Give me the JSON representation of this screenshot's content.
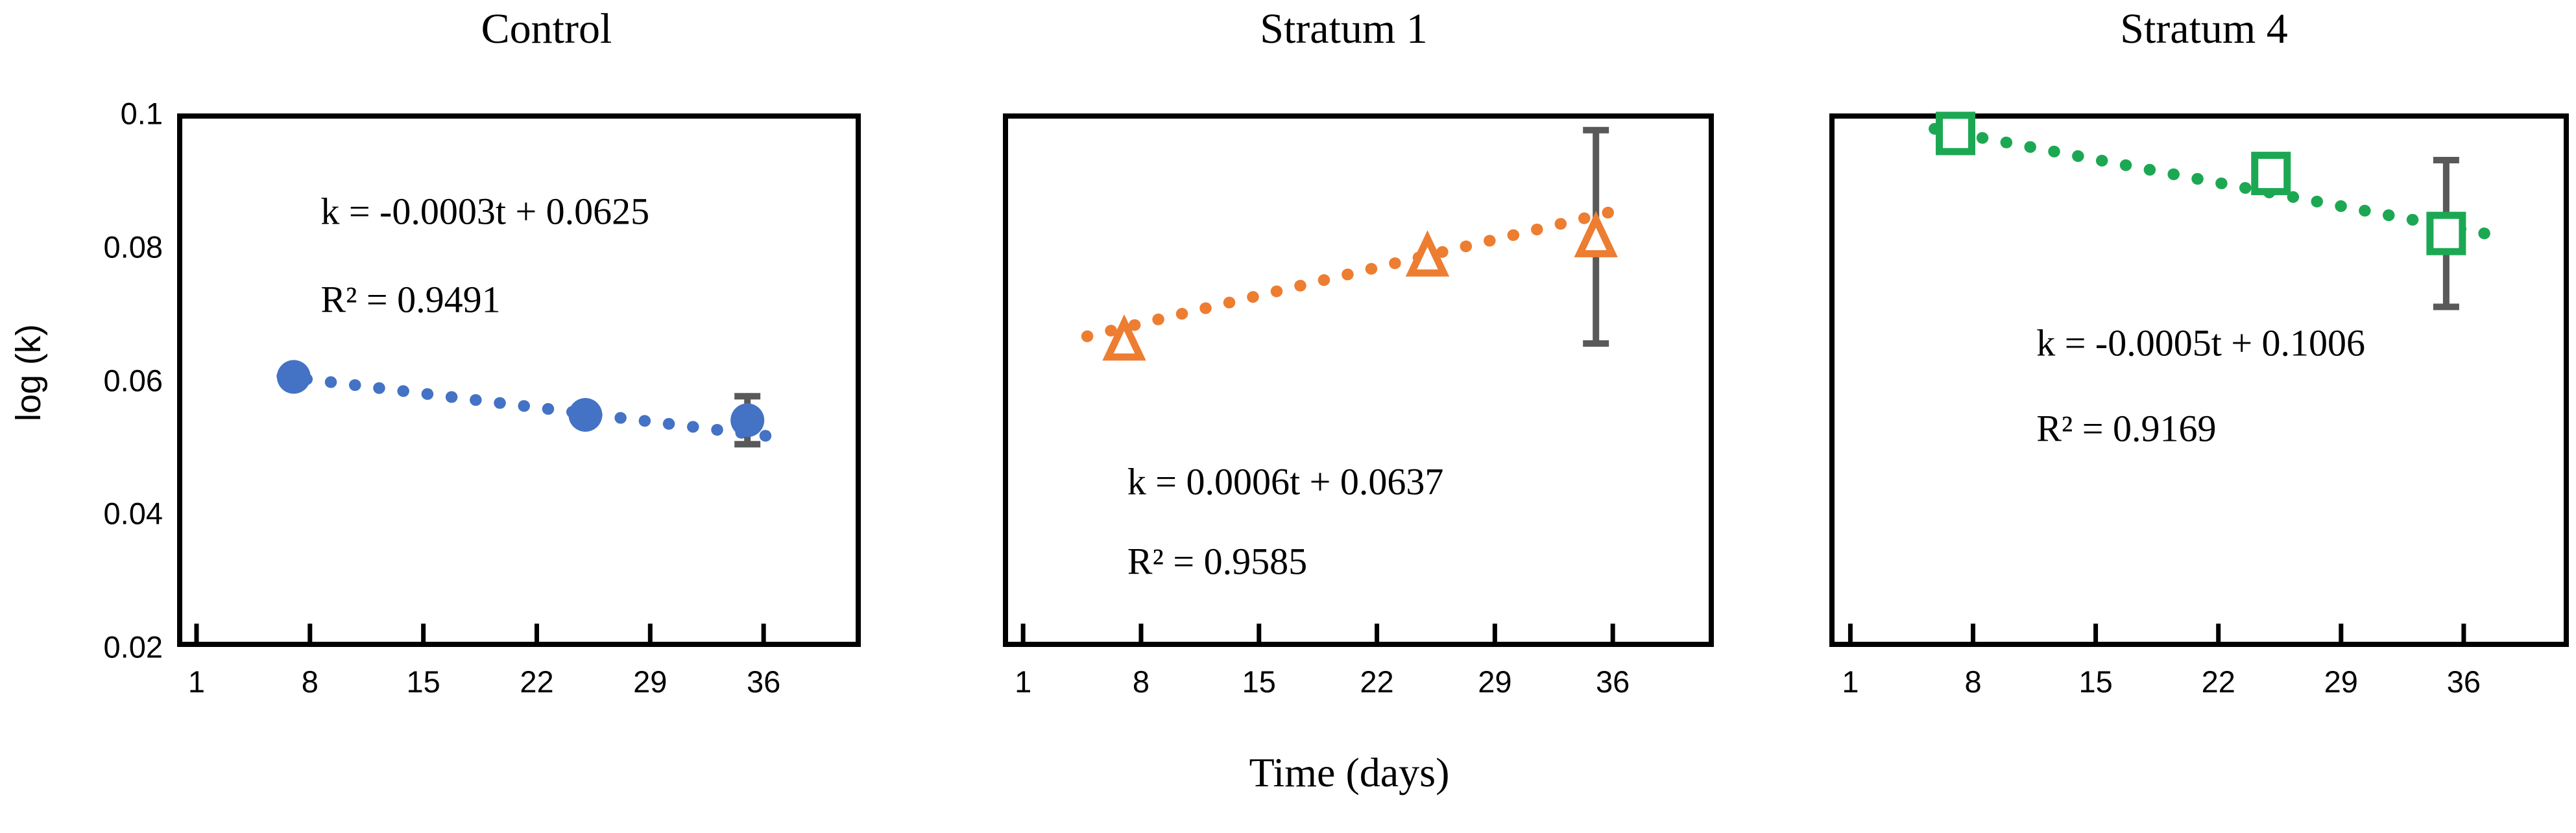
{
  "figure": {
    "y_axis_label": "log (k)",
    "x_axis_label": "Time (days)",
    "background_color": "#ffffff",
    "axis_color": "#000000",
    "error_bar_color": "#595959"
  },
  "chart_data": [
    {
      "type": "scatter",
      "title": "Control",
      "marker": "filled-circle",
      "color": "#4472C4",
      "xlim": [
        -0.2,
        42
      ],
      "ylim": [
        0.02,
        0.1
      ],
      "xticks": [
        1,
        8,
        15,
        22,
        29,
        36
      ],
      "yticks": [
        0.02,
        0.04,
        0.06,
        0.08,
        0.1
      ],
      "ytick_labels": [
        "0.02",
        "0.04",
        "0.06",
        "0.08",
        "0.1"
      ],
      "show_y_tick_labels": true,
      "xlabel": "Time (days)",
      "ylabel": "log (k)",
      "grid": false,
      "points": [
        {
          "t": 7,
          "k": 0.0605
        },
        {
          "t": 25,
          "k": 0.0548
        },
        {
          "t": 35,
          "k": 0.054,
          "error": 0.0036
        }
      ],
      "trendline": {
        "style": "dotted",
        "slope": -0.0003,
        "intercept": 0.0625,
        "t_start": 6.3,
        "t_end": 36.8,
        "equation": "k = -0.0003t + 0.0625",
        "r_squared": "R² = 0.9491"
      }
    },
    {
      "type": "scatter",
      "title": "Stratum 1",
      "marker": "open-triangle",
      "color": "#ED7D31",
      "xlim": [
        -0.2,
        42
      ],
      "ylim": [
        0.02,
        0.1
      ],
      "xticks": [
        1,
        8,
        15,
        22,
        29,
        36
      ],
      "yticks": [
        0.02,
        0.04,
        0.06,
        0.08,
        0.1
      ],
      "ytick_labels": [
        "0.02",
        "0.04",
        "0.06",
        "0.08",
        "0.1"
      ],
      "show_y_tick_labels": false,
      "xlabel": "Time (days)",
      "ylabel": "log (k)",
      "grid": false,
      "points": [
        {
          "t": 7,
          "k": 0.066
        },
        {
          "t": 25,
          "k": 0.0786
        },
        {
          "t": 35,
          "k": 0.0815,
          "error": 0.016
        }
      ],
      "trendline": {
        "style": "dotted",
        "slope": 0.0006,
        "intercept": 0.0637,
        "t_start": 4.8,
        "t_end": 37.0,
        "equation": "k = 0.0006t + 0.0637",
        "r_squared": "R² = 0.9585"
      }
    },
    {
      "type": "scatter",
      "title": "Stratum 4",
      "marker": "open-square",
      "color": "#1CA853",
      "xlim": [
        -0.2,
        42
      ],
      "ylim": [
        0.02,
        0.1
      ],
      "xticks": [
        1,
        8,
        15,
        22,
        29,
        36
      ],
      "yticks": [
        0.02,
        0.04,
        0.06,
        0.08,
        0.1
      ],
      "ytick_labels": [
        "0.02",
        "0.04",
        "0.06",
        "0.08",
        "0.1"
      ],
      "show_y_tick_labels": false,
      "xlabel": "Time (days)",
      "ylabel": "log (k)",
      "grid": false,
      "points": [
        {
          "t": 7,
          "k": 0.097
        },
        {
          "t": 25,
          "k": 0.091
        },
        {
          "t": 35,
          "k": 0.082,
          "error": 0.011
        }
      ],
      "trendline": {
        "style": "dotted",
        "slope": -0.0005,
        "intercept": 0.1006,
        "t_start": 5.8,
        "t_end": 37.3,
        "equation": "k = -0.0005t + 0.1006",
        "r_squared": "R² = 0.9169"
      }
    }
  ]
}
